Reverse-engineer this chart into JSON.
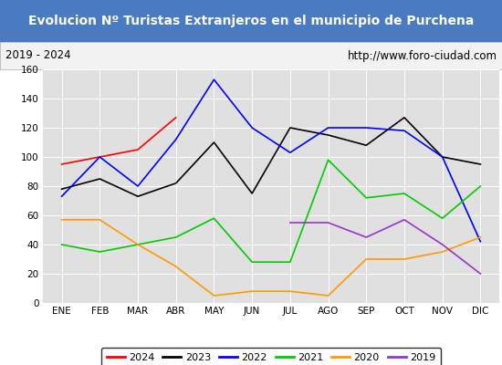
{
  "title": "Evolucion Nº Turistas Extranjeros en el municipio de Purchena",
  "subtitle_left": "2019 - 2024",
  "subtitle_right": "http://www.foro-ciudad.com",
  "title_bg_color": "#4a7abf",
  "title_text_color": "#ffffff",
  "subtitle_bg_color": "#f2f2f2",
  "plot_bg_color": "#e0e0e0",
  "months": [
    "ENE",
    "FEB",
    "MAR",
    "ABR",
    "MAY",
    "JUN",
    "JUL",
    "AGO",
    "SEP",
    "OCT",
    "NOV",
    "DIC"
  ],
  "ylim": [
    0,
    160
  ],
  "yticks": [
    0,
    20,
    40,
    60,
    80,
    100,
    120,
    140,
    160
  ],
  "series": {
    "2024": {
      "color": "#ff0000",
      "values": [
        95,
        100,
        105,
        127,
        null,
        null,
        null,
        null,
        null,
        null,
        null,
        null
      ]
    },
    "2023": {
      "color": "#000000",
      "values": [
        78,
        85,
        73,
        82,
        110,
        75,
        120,
        115,
        108,
        127,
        100,
        95
      ]
    },
    "2022": {
      "color": "#0000ff",
      "values": [
        73,
        100,
        80,
        112,
        153,
        120,
        103,
        120,
        120,
        118,
        100,
        42
      ]
    },
    "2021": {
      "color": "#00cc00",
      "values": [
        40,
        35,
        40,
        45,
        58,
        28,
        28,
        98,
        72,
        75,
        58,
        80
      ]
    },
    "2020": {
      "color": "#ff9900",
      "values": [
        57,
        57,
        40,
        25,
        5,
        8,
        8,
        5,
        30,
        30,
        35,
        45
      ]
    },
    "2019": {
      "color": "#9933cc",
      "values": [
        null,
        null,
        null,
        null,
        null,
        null,
        55,
        55,
        45,
        57,
        40,
        20
      ]
    }
  },
  "legend_order": [
    "2024",
    "2023",
    "2022",
    "2021",
    "2020",
    "2019"
  ],
  "fig_width": 5.5,
  "fig_height": 4.0,
  "dpi": 100
}
